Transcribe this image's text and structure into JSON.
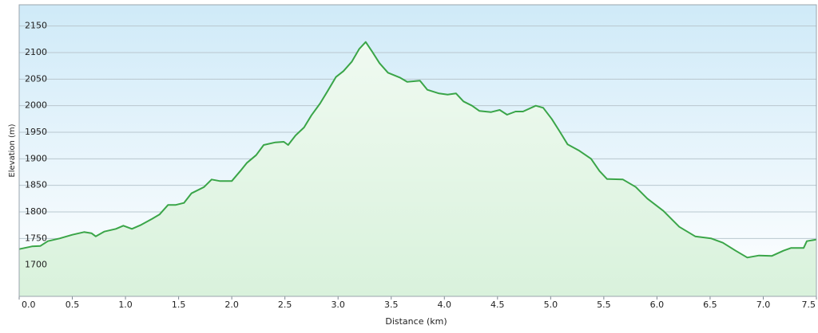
{
  "chart_data": {
    "type": "area",
    "x_label": "Distance  (km)",
    "y_label": "Elevation (m)",
    "x": [
      0.0,
      0.12,
      0.2,
      0.27,
      0.38,
      0.5,
      0.61,
      0.68,
      0.72,
      0.8,
      0.91,
      0.98,
      1.06,
      1.14,
      1.25,
      1.32,
      1.4,
      1.47,
      1.55,
      1.62,
      1.74,
      1.81,
      1.89,
      2.0,
      2.08,
      2.14,
      2.23,
      2.3,
      2.41,
      2.49,
      2.53,
      2.6,
      2.68,
      2.75,
      2.83,
      2.9,
      2.98,
      3.05,
      3.13,
      3.2,
      3.26,
      3.32,
      3.39,
      3.47,
      3.58,
      3.65,
      3.77,
      3.84,
      3.95,
      4.03,
      4.11,
      4.18,
      4.26,
      4.33,
      4.44,
      4.52,
      4.59,
      4.67,
      4.74,
      4.86,
      4.93,
      5.01,
      5.08,
      5.16,
      5.27,
      5.38,
      5.46,
      5.53,
      5.68,
      5.8,
      5.91,
      6.06,
      6.21,
      6.36,
      6.51,
      6.62,
      6.74,
      6.85,
      6.96,
      7.08,
      7.19,
      7.26,
      7.38,
      7.41,
      7.5
    ],
    "values": [
      1730,
      1735,
      1736,
      1745,
      1750,
      1757,
      1762,
      1760,
      1754,
      1763,
      1768,
      1774,
      1768,
      1775,
      1787,
      1795,
      1813,
      1813,
      1817,
      1835,
      1847,
      1861,
      1858,
      1858,
      1877,
      1892,
      1907,
      1926,
      1931,
      1932,
      1926,
      1944,
      1959,
      1982,
      2004,
      2027,
      2054,
      2065,
      2083,
      2107,
      2120,
      2102,
      2080,
      2062,
      2053,
      2045,
      2047,
      2030,
      2023,
      2021,
      2023,
      2008,
      2000,
      1990,
      1988,
      1992,
      1983,
      1989,
      1989,
      2000,
      1996,
      1975,
      1953,
      1927,
      1915,
      1900,
      1877,
      1862,
      1861,
      1847,
      1825,
      1802,
      1772,
      1754,
      1750,
      1742,
      1727,
      1714,
      1718,
      1717,
      1727,
      1732,
      1732,
      1745,
      1748
    ],
    "color": "#3aa548",
    "fill_color": "#d9f2dc",
    "xlim": [
      0,
      7.5
    ],
    "xticks": [
      {
        "value": 0,
        "label": "0.0"
      },
      0.5,
      {
        "value": 1,
        "label": "1.0"
      },
      1.5,
      {
        "value": 2,
        "label": "2.0"
      },
      2.5,
      {
        "value": 3,
        "label": "3.0"
      },
      3.5,
      {
        "value": 4,
        "label": "4.0"
      },
      4.5,
      {
        "value": 5,
        "label": "5.0"
      },
      5.5,
      {
        "value": 6,
        "label": "6.0"
      },
      6.5,
      {
        "value": 7,
        "label": "7.0"
      },
      7.5
    ],
    "ylim": [
      1641,
      2190
    ],
    "yticks": [
      1700,
      1750,
      1800,
      1850,
      1900,
      1950,
      2000,
      2050,
      2100,
      2150
    ],
    "grid": true
  }
}
